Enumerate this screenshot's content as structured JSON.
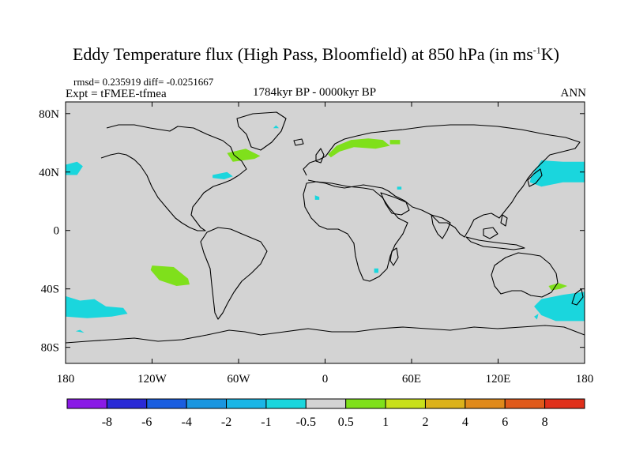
{
  "title": {
    "main": "Eddy Temperature flux (High Pass, Bloomfield) at 850 hPa (in ms",
    "sup": "-1",
    "tail": "K)"
  },
  "subtitle": {
    "rmsd_line": "rmsd= 0.235919  diff= -0.0251667",
    "experiment": "Expt = tFMEE-tfmea",
    "period": "1784kyr BP - 0000kyr BP",
    "season": "ANN"
  },
  "axes": {
    "lat_ticks": [
      {
        "value": 80,
        "label": "80N"
      },
      {
        "value": 40,
        "label": "40N"
      },
      {
        "value": 0,
        "label": "0"
      },
      {
        "value": -40,
        "label": "40S"
      },
      {
        "value": -80,
        "label": "80S"
      }
    ],
    "lon_ticks": [
      {
        "value": -180,
        "label": "180"
      },
      {
        "value": -120,
        "label": "120W"
      },
      {
        "value": -60,
        "label": "60W"
      },
      {
        "value": 0,
        "label": "0"
      },
      {
        "value": 60,
        "label": "60E"
      },
      {
        "value": 120,
        "label": "120E"
      },
      {
        "value": 180,
        "label": "180"
      }
    ]
  },
  "colors": {
    "land_sea_background": "#d3d3d3",
    "coastline": "#000000",
    "positive_anomaly": "#7fe01b",
    "negative_anomaly": "#1ad6dd"
  },
  "colorbar": {
    "colors": [
      "#8a1ae6",
      "#2a2ad6",
      "#1a5ee0",
      "#1a96e0",
      "#1ab6e6",
      "#1ad6dd",
      "#d3d3d3",
      "#7fe01b",
      "#c8e01b",
      "#dcb21b",
      "#e08a1b",
      "#e05a1b",
      "#e0301b"
    ],
    "labels": [
      "-8",
      "-6",
      "-4",
      "-2",
      "-1",
      "-0.5",
      "0.5",
      "1",
      "2",
      "4",
      "6",
      "8"
    ]
  },
  "map_data": {
    "regions": [
      {
        "name": "north-atlantic-positive",
        "sign": "positive",
        "points": [
          [
            -68,
            53
          ],
          [
            -55,
            56
          ],
          [
            -45,
            51
          ],
          [
            -49,
            49
          ],
          [
            -64,
            47
          ]
        ]
      },
      {
        "name": "mid-atlantic-negative",
        "sign": "negative",
        "points": [
          [
            -78,
            38
          ],
          [
            -68,
            40
          ],
          [
            -64,
            37
          ],
          [
            -70,
            35
          ],
          [
            -78,
            36
          ]
        ]
      },
      {
        "name": "scandinavia-positive",
        "sign": "positive",
        "points": [
          [
            2,
            52
          ],
          [
            8,
            58
          ],
          [
            18,
            62
          ],
          [
            30,
            63
          ],
          [
            40,
            62
          ],
          [
            45,
            58
          ],
          [
            35,
            56
          ],
          [
            20,
            57
          ],
          [
            10,
            54
          ],
          [
            4,
            50
          ]
        ]
      },
      {
        "name": "barents-positive",
        "sign": "positive",
        "points": [
          [
            45,
            62
          ],
          [
            52,
            62
          ],
          [
            52,
            59
          ],
          [
            45,
            59
          ]
        ]
      },
      {
        "name": "kara-negative",
        "sign": "negative",
        "points": [
          [
            -36,
            70
          ],
          [
            -34,
            72
          ],
          [
            -32,
            70
          ]
        ]
      },
      {
        "name": "north-pacific-west-negative",
        "sign": "negative",
        "points": [
          [
            -180,
            45
          ],
          [
            -172,
            47
          ],
          [
            -168,
            44
          ],
          [
            -172,
            38
          ],
          [
            -180,
            38
          ]
        ]
      },
      {
        "name": "north-pacific-east-negative",
        "sign": "negative",
        "points": [
          [
            143,
            37
          ],
          [
            150,
            48
          ],
          [
            165,
            47
          ],
          [
            180,
            47
          ],
          [
            180,
            33
          ],
          [
            165,
            33
          ],
          [
            150,
            30
          ],
          [
            142,
            33
          ]
        ]
      },
      {
        "name": "south-pacific-positive",
        "sign": "positive",
        "points": [
          [
            -120,
            -24
          ],
          [
            -105,
            -25
          ],
          [
            -95,
            -33
          ],
          [
            -94,
            -37
          ],
          [
            -103,
            -38
          ],
          [
            -115,
            -34
          ],
          [
            -121,
            -27
          ]
        ]
      },
      {
        "name": "south-pacific-west-negative",
        "sign": "negative",
        "points": [
          [
            -180,
            -45
          ],
          [
            -170,
            -48
          ],
          [
            -160,
            -47
          ],
          [
            -152,
            -52
          ],
          [
            -140,
            -53
          ],
          [
            -137,
            -57
          ],
          [
            -148,
            -59
          ],
          [
            -165,
            -60
          ],
          [
            -180,
            -59
          ]
        ]
      },
      {
        "name": "south-pacific-far-negative",
        "sign": "negative",
        "points": [
          [
            -173,
            -69
          ],
          [
            -170,
            -68
          ],
          [
            -167,
            -70
          ]
        ]
      },
      {
        "name": "indian-south-negative",
        "sign": "negative",
        "points": [
          [
            150,
            -47
          ],
          [
            165,
            -44
          ],
          [
            180,
            -42
          ],
          [
            180,
            -62
          ],
          [
            160,
            -62
          ],
          [
            150,
            -58
          ],
          [
            145,
            -52
          ]
        ]
      },
      {
        "name": "indian-mid-negative",
        "sign": "negative",
        "points": [
          [
            145,
            -59
          ],
          [
            148,
            -57
          ],
          [
            147,
            -61
          ]
        ]
      },
      {
        "name": "africa-south-negative",
        "sign": "negative",
        "points": [
          [
            34,
            -26
          ],
          [
            37,
            -26
          ],
          [
            37,
            -29
          ],
          [
            34,
            -29
          ]
        ]
      },
      {
        "name": "atlantic-small-negative",
        "sign": "negative",
        "points": [
          [
            -7,
            24
          ],
          [
            -4,
            23
          ],
          [
            -4,
            21
          ],
          [
            -7,
            21
          ]
        ]
      },
      {
        "name": "arabia-negative",
        "sign": "negative",
        "points": [
          [
            50,
            30
          ],
          [
            53,
            30
          ],
          [
            53,
            28
          ],
          [
            50,
            28
          ]
        ]
      },
      {
        "name": "tasman-positive",
        "sign": "positive",
        "points": [
          [
            155,
            -38
          ],
          [
            162,
            -36
          ],
          [
            168,
            -38
          ],
          [
            163,
            -40
          ],
          [
            157,
            -41
          ]
        ]
      }
    ]
  }
}
